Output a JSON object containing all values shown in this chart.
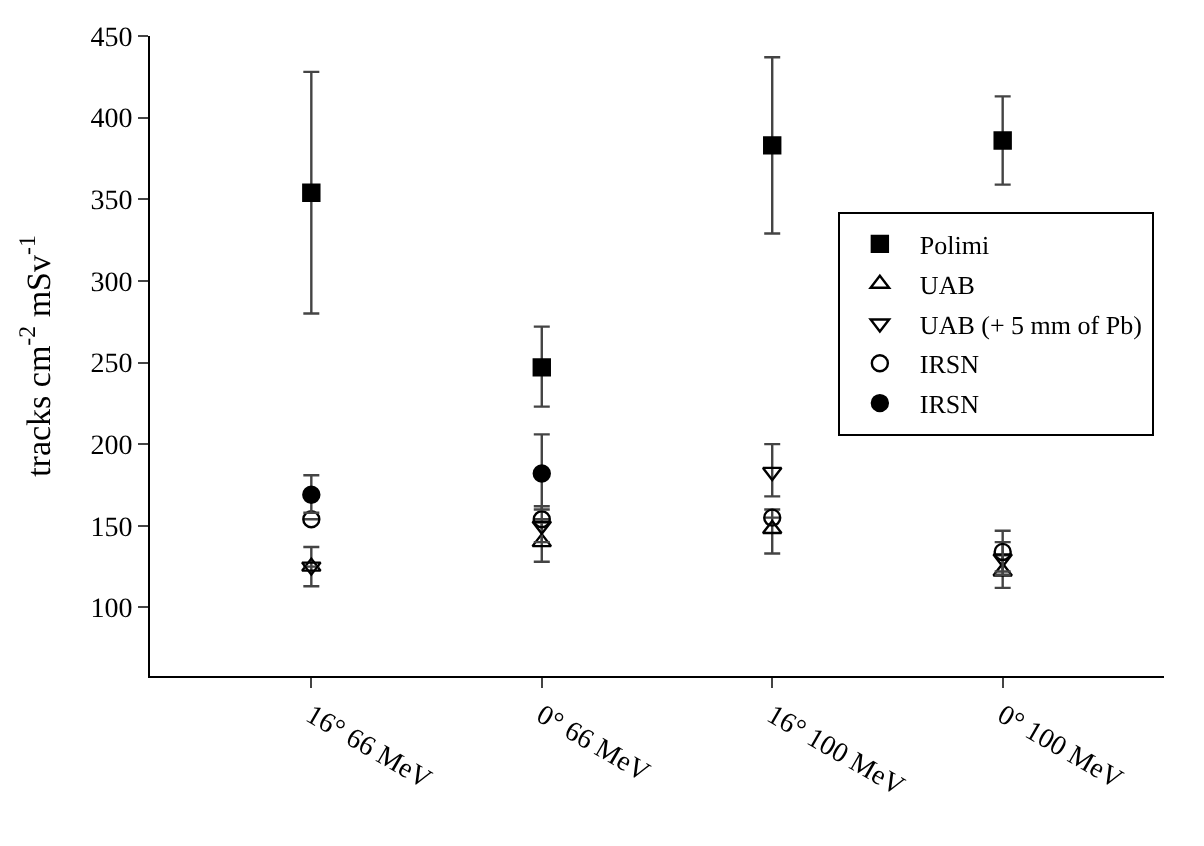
{
  "chart_data": {
    "type": "scatter",
    "ylabel": "tracks cm$^{-2}$ mSv$^{-1}$",
    "categories": [
      "16° 66 MeV",
      "0° 66 MeV",
      "16° 100 MeV",
      "0° 100 MeV"
    ],
    "ylim": [
      58,
      450
    ],
    "yticks": [
      100,
      150,
      200,
      250,
      300,
      350,
      400,
      450
    ],
    "legend": "right",
    "series": [
      {
        "name": "Polimi",
        "color": "#000000",
        "marker": "square",
        "values": [
          354,
          247,
          383,
          386
        ],
        "errors": [
          [
            280,
            428
          ],
          [
            223,
            272
          ],
          [
            329,
            437
          ],
          [
            359,
            413
          ]
        ]
      },
      {
        "name": "UAB",
        "color": "#000000",
        "marker": "triangle-up-open",
        "values": [
          125,
          140,
          148,
          122
        ],
        "errors": [
          [
            113,
            137
          ],
          [
            128,
            152
          ],
          [
            133,
            160
          ],
          [
            112,
            132
          ]
        ]
      },
      {
        "name": "UAB (+ 5 mm of Pb)",
        "color": "#000000",
        "marker": "triangle-down-open",
        "values": [
          125,
          150,
          183,
          130
        ],
        "errors": [
          null,
          [
            140,
            162
          ],
          [
            168,
            200
          ],
          [
            120,
            140
          ]
        ]
      },
      {
        "name": "IRSN",
        "color": "#000000",
        "marker": "circle-open",
        "values": [
          154,
          154,
          155,
          134
        ],
        "errors": [
          null,
          null,
          null,
          [
            122,
            147
          ]
        ]
      },
      {
        "name": "IRSN",
        "color": "#000000",
        "marker": "circle",
        "values": [
          169,
          182,
          null,
          null
        ],
        "errors": [
          [
            158,
            181
          ],
          [
            160,
            206
          ],
          null,
          null
        ]
      }
    ]
  }
}
